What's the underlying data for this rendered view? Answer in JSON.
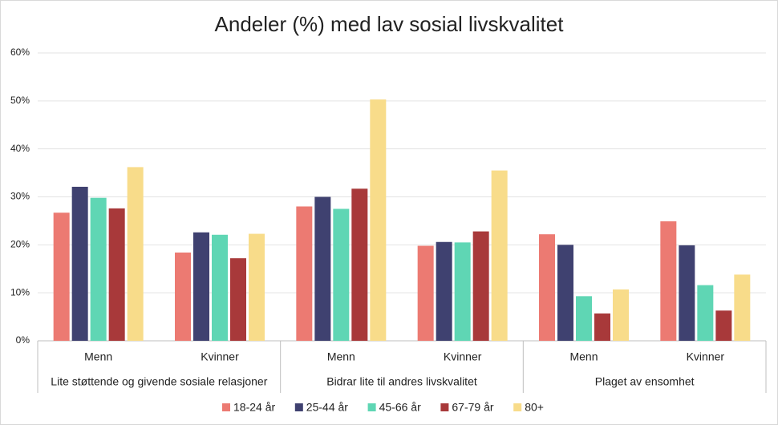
{
  "chart_data": {
    "type": "bar",
    "title": "Andeler (%) med lav sosial livskvalitet",
    "categories": [
      "Menn",
      "Kvinner",
      "Menn",
      "Kvinner",
      "Menn",
      "Kvinner"
    ],
    "groups": [
      "Lite støttende og givende sosiale relasjoner",
      "Bidrar lite til andres livskvalitet",
      "Plaget av ensomhet"
    ],
    "series": [
      {
        "name": "18-24 år",
        "color": "#ec7a72",
        "values": [
          26.7,
          18.4,
          28.0,
          19.8,
          22.2,
          24.9
        ]
      },
      {
        "name": "25-44 år",
        "color": "#3f4170",
        "values": [
          32.1,
          22.6,
          30.0,
          20.6,
          20.0,
          19.9
        ]
      },
      {
        "name": "45-66 år",
        "color": "#5fd6b4",
        "values": [
          29.8,
          22.1,
          27.5,
          20.5,
          9.3,
          11.6
        ]
      },
      {
        "name": "67-79 år",
        "color": "#a8393a",
        "values": [
          27.6,
          17.2,
          31.7,
          22.8,
          5.7,
          6.3
        ]
      },
      {
        "name": "80+",
        "color": "#f8dc8a",
        "values": [
          36.2,
          22.3,
          50.3,
          35.5,
          10.7,
          13.8
        ]
      }
    ],
    "ylim": [
      0,
      60
    ],
    "yticks": [
      {
        "value": 0,
        "label": "0%"
      },
      {
        "value": 10,
        "label": "10%"
      },
      {
        "value": 20,
        "label": "20%"
      },
      {
        "value": 30,
        "label": "30%"
      },
      {
        "value": 40,
        "label": "40%"
      },
      {
        "value": 50,
        "label": "50%"
      },
      {
        "value": 60,
        "label": "60%"
      }
    ],
    "grid": true,
    "legend": "bottom"
  }
}
